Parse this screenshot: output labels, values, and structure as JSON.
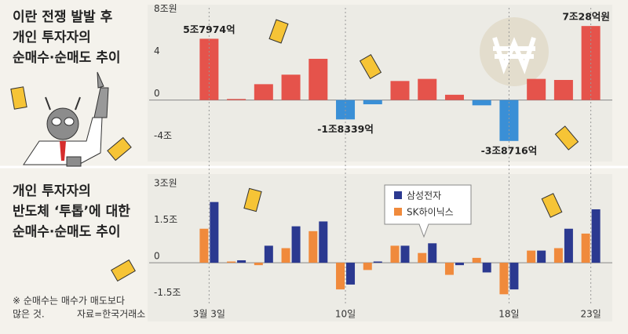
{
  "chart_data": [
    {
      "type": "bar",
      "title": [
        "이란 전쟁 발발 후",
        "개인 투자자의",
        "순매수·순매도 추이"
      ],
      "values": [
        5.7974,
        0.1,
        1.5,
        2.4,
        3.9,
        -1.8339,
        -0.4,
        1.8,
        2.0,
        0.5,
        -0.5,
        -3.8716,
        2.0,
        1.9,
        7.0028
      ],
      "value_labels": [
        "5조7974억",
        null,
        null,
        null,
        null,
        "-1조8339억",
        null,
        null,
        null,
        null,
        null,
        "-3조8716억",
        null,
        null,
        "7조28억원"
      ],
      "colors": {
        "positive": "#e5534b",
        "negative": "#3a8fd6"
      },
      "ylim": [
        -5,
        8.5
      ],
      "yticks": [
        {
          "value": 8,
          "label": "8조원"
        },
        4,
        0,
        {
          "value": -4,
          "label": "-4조"
        }
      ]
    },
    {
      "type": "bar",
      "title": [
        "개인 투자자의",
        "반도체 ‘투톱’에 대한",
        "순매수·순매도 추이"
      ],
      "categories": [
        "3월 3일",
        null,
        null,
        null,
        null,
        "10일",
        null,
        null,
        null,
        null,
        null,
        "18일",
        null,
        null,
        "23일"
      ],
      "series": [
        {
          "name": "SK하이닉스",
          "color": "#f08a3c",
          "values": [
            1.4,
            0.05,
            -0.1,
            0.6,
            1.3,
            -1.1,
            -0.3,
            0.7,
            0.4,
            -0.5,
            0.2,
            -1.3,
            0.5,
            0.6,
            1.2
          ]
        },
        {
          "name": "삼성전자",
          "color": "#2b3990",
          "values": [
            2.5,
            0.1,
            0.7,
            1.5,
            1.7,
            -0.9,
            0.05,
            0.7,
            0.8,
            -0.1,
            -0.4,
            -1.1,
            0.5,
            1.4,
            2.2
          ]
        }
      ],
      "ylim": [
        -2,
        3.2
      ],
      "yticks": [
        {
          "value": 3,
          "label": "3조원"
        },
        {
          "value": 1.5,
          "label": "1.5조"
        },
        0,
        {
          "value": -1.5,
          "label": "-1.5조"
        }
      ],
      "footnote": [
        "※ 순매수는 매수가 매도보다",
        "많은 것."
      ],
      "source": "자료=한국거래소"
    }
  ]
}
